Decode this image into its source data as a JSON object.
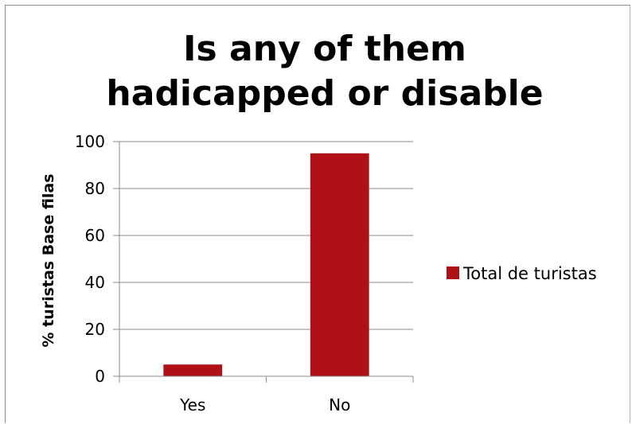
{
  "chart_data": {
    "type": "bar",
    "title_lines": [
      "Is any of them",
      "hadicapped or disable"
    ],
    "categories": [
      "Yes",
      "No"
    ],
    "series": [
      {
        "name": "Total de turistas",
        "values": [
          5,
          95
        ],
        "color": "#b01116"
      }
    ],
    "xlabel": "",
    "ylabel": "% turistas Base filas",
    "ylim": [
      0,
      100
    ],
    "yticks": [
      0,
      20,
      40,
      60,
      80,
      100
    ],
    "grid": true,
    "legend_position": "right"
  }
}
